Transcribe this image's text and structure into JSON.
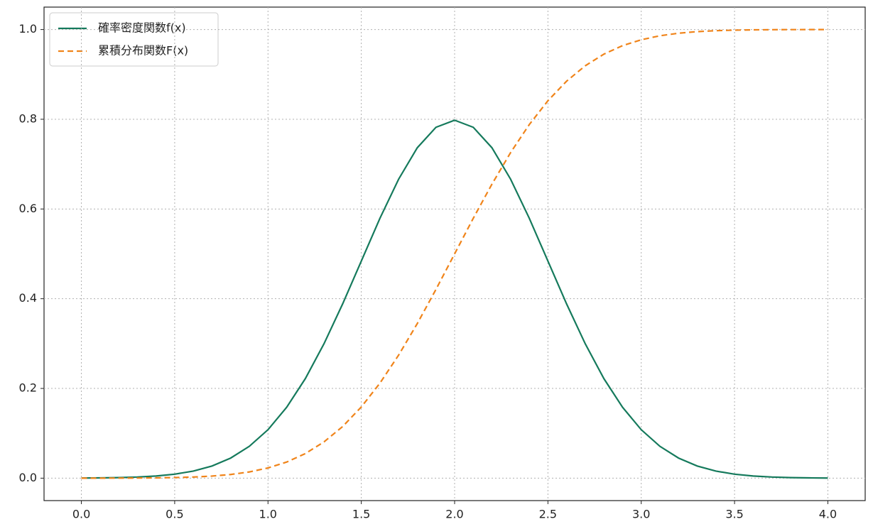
{
  "chart_data": {
    "type": "line",
    "x": [
      0,
      0.1,
      0.2,
      0.3,
      0.4,
      0.5,
      0.6,
      0.7,
      0.8,
      0.9,
      1,
      1.1,
      1.2,
      1.3,
      1.4,
      1.5,
      1.6,
      1.7,
      1.8,
      1.9,
      2,
      2.1,
      2.2,
      2.3,
      2.4,
      2.5,
      2.6,
      2.7,
      2.8,
      2.9,
      3,
      3.1,
      3.2,
      3.3,
      3.4,
      3.5,
      3.6,
      3.7,
      3.8,
      3.9,
      4
    ],
    "series": [
      {
        "name": "確率密度関数f(x)",
        "color": "#157a5c",
        "dash": "solid",
        "values": [
          0.0003,
          0.0006,
          0.0012,
          0.0025,
          0.0048,
          0.0089,
          0.0158,
          0.0271,
          0.0448,
          0.071,
          0.108,
          0.1579,
          0.2218,
          0.2995,
          0.3884,
          0.4839,
          0.5794,
          0.6664,
          0.7365,
          0.7821,
          0.7979,
          0.7821,
          0.7365,
          0.6664,
          0.5794,
          0.4839,
          0.3884,
          0.2995,
          0.2218,
          0.1579,
          0.108,
          0.071,
          0.0448,
          0.0271,
          0.0158,
          0.0089,
          0.0048,
          0.0025,
          0.0012,
          0.0006,
          0.0003
        ]
      },
      {
        "name": "累積分布関数F(x)",
        "color": "#f0841a",
        "dash": "dashed",
        "values": [
          3e-05,
          7e-05,
          0.00016,
          0.00034,
          0.00069,
          0.00135,
          0.00256,
          0.00466,
          0.0082,
          0.0139,
          0.0228,
          0.0359,
          0.0548,
          0.0808,
          0.1151,
          0.1587,
          0.2119,
          0.2743,
          0.3446,
          0.4207,
          0.5,
          0.5793,
          0.6554,
          0.7257,
          0.7881,
          0.8413,
          0.8849,
          0.9192,
          0.9452,
          0.9641,
          0.9772,
          0.9861,
          0.9918,
          0.99534,
          0.99744,
          0.99865,
          0.99931,
          0.99966,
          0.99984,
          0.99993,
          0.99997
        ]
      }
    ],
    "xlim": [
      -0.2,
      4.2
    ],
    "ylim": [
      -0.05,
      1.05
    ],
    "xticks": [
      {
        "value": 0,
        "label": "0.0"
      },
      0.5,
      {
        "value": 1,
        "label": "1.0"
      },
      1.5,
      {
        "value": 2,
        "label": "2.0"
      },
      2.5,
      {
        "value": 3,
        "label": "3.0"
      },
      3.5,
      {
        "value": 4,
        "label": "4.0"
      }
    ],
    "yticks": [
      {
        "value": 0,
        "label": "0.0"
      },
      0.2,
      0.4,
      0.6,
      0.8,
      {
        "value": 1,
        "label": "1.0"
      }
    ],
    "grid": true,
    "legend": "upper-left"
  }
}
